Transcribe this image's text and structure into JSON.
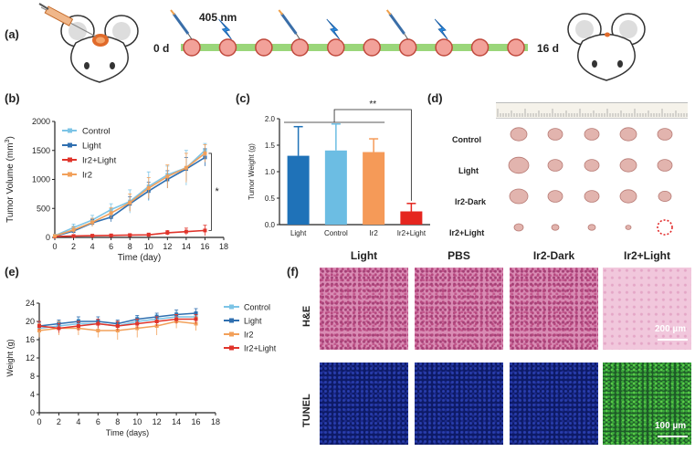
{
  "panels": {
    "a": "(a)",
    "b": "(b)",
    "c": "(c)",
    "d": "(d)",
    "e": "(e)",
    "f": "(f)"
  },
  "timeline": {
    "wavelength": "405 nm",
    "start": "0 d",
    "end": "16 d",
    "node_count": 10,
    "injection_nodes": [
      0,
      3,
      6
    ],
    "light_nodes": [
      1,
      4,
      7
    ]
  },
  "colors": {
    "control": "#7cc4e6",
    "light": "#2f6fb0",
    "ir2_light": "#e0342b",
    "ir2": "#f2a05a",
    "bar_light": "#1f72b8",
    "bar_control": "#6cbde3",
    "bar_ir2": "#f59a58",
    "bar_ir2light": "#e5261f",
    "timeline_bar": "#9ad67a",
    "node": "#f2a199"
  },
  "chart_data": [
    {
      "type": "line",
      "id": "tumor_volume",
      "xlabel": "Time (day)",
      "ylabel": "Tumor Volume (mm3)",
      "ylabel_base": "Tumor Volume (mm",
      "ylabel_sup": "3",
      "ylabel_end": ")",
      "xlim": [
        0,
        18
      ],
      "ylim": [
        0,
        2000
      ],
      "xticks": [
        0,
        2,
        4,
        6,
        8,
        10,
        12,
        14,
        16,
        18
      ],
      "yticks": [
        0,
        500,
        1000,
        1500,
        2000
      ],
      "x": [
        0,
        2,
        4,
        6,
        8,
        10,
        12,
        14,
        16
      ],
      "series": [
        {
          "name": "Control",
          "values": [
            30,
            170,
            300,
            480,
            620,
            880,
            1080,
            1200,
            1500
          ],
          "err": [
            20,
            60,
            80,
            100,
            200,
            250,
            150,
            300,
            120
          ]
        },
        {
          "name": "Light",
          "values": [
            20,
            110,
            250,
            350,
            580,
            800,
            1000,
            1180,
            1380
          ],
          "err": [
            15,
            40,
            60,
            80,
            120,
            150,
            150,
            200,
            150
          ]
        },
        {
          "name": "Ir2+Light",
          "values": [
            15,
            25,
            30,
            35,
            40,
            45,
            80,
            100,
            120
          ],
          "err": [
            10,
            10,
            15,
            20,
            20,
            30,
            40,
            60,
            90
          ]
        },
        {
          "name": "Ir2",
          "values": [
            25,
            130,
            260,
            420,
            600,
            850,
            1050,
            1200,
            1450
          ],
          "err": [
            20,
            50,
            70,
            90,
            150,
            180,
            200,
            250,
            150
          ]
        }
      ],
      "annotation": "*"
    },
    {
      "type": "bar",
      "id": "tumor_weight",
      "ylabel": "Tumor Weight (g)",
      "categories": [
        "Light",
        "Control",
        "Ir2",
        "Ir2+Light"
      ],
      "values": [
        1.3,
        1.4,
        1.37,
        0.25
      ],
      "err": [
        0.55,
        0.5,
        0.25,
        0.15
      ],
      "ylim": [
        0,
        2.0
      ],
      "yticks": [
        "0.0",
        "0.5",
        "1.0",
        "1.5",
        "2.0"
      ],
      "annotation": "**"
    },
    {
      "type": "line",
      "id": "body_weight",
      "xlabel": "Time (days)",
      "ylabel": "Weight (g)",
      "xlim": [
        0,
        18
      ],
      "ylim": [
        0,
        24
      ],
      "xticks": [
        0,
        2,
        4,
        6,
        8,
        10,
        12,
        14,
        16,
        18
      ],
      "yticks": [
        0,
        4,
        8,
        12,
        16,
        20,
        24
      ],
      "x": [
        0,
        2,
        4,
        6,
        8,
        10,
        12,
        14,
        16
      ],
      "series": [
        {
          "name": "Control",
          "values": [
            18.5,
            19,
            19.5,
            19.5,
            19,
            20,
            20.5,
            21,
            21
          ],
          "err": [
            0.8,
            1,
            1,
            1,
            1,
            1,
            1,
            1,
            1
          ]
        },
        {
          "name": "Light",
          "values": [
            19,
            19.5,
            20,
            20,
            19.5,
            20.5,
            21,
            21.5,
            21.8
          ],
          "err": [
            0.8,
            0.8,
            1,
            1,
            0.8,
            0.8,
            0.8,
            1,
            1
          ]
        },
        {
          "name": "Ir2",
          "values": [
            18,
            18.5,
            18.5,
            18,
            18,
            18.5,
            19,
            20,
            19.5
          ],
          "err": [
            1.5,
            1.5,
            1.5,
            1.5,
            2,
            2,
            2,
            1.5,
            1.5
          ]
        },
        {
          "name": "Ir2+Light",
          "values": [
            19,
            18.5,
            19,
            19.5,
            19,
            19.5,
            20,
            20.5,
            20.5
          ],
          "err": [
            1,
            1,
            1,
            1,
            1,
            1,
            1,
            1,
            1
          ]
        }
      ]
    }
  ],
  "photo": {
    "rows": [
      "Control",
      "Light",
      "Ir2-Dark",
      "Ir2+Light"
    ]
  },
  "histology": {
    "columns": [
      "Light",
      "PBS",
      "Ir2-Dark",
      "Ir2+Light"
    ],
    "stains": [
      "H&E",
      "TUNEL"
    ],
    "scale_he": "200 µm",
    "scale_tunel": "100 µm"
  }
}
